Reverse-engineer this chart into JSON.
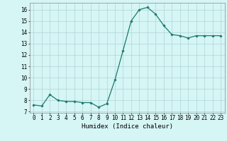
{
  "x": [
    0,
    1,
    2,
    3,
    4,
    5,
    6,
    7,
    8,
    9,
    10,
    11,
    12,
    13,
    14,
    15,
    16,
    17,
    18,
    19,
    20,
    21,
    22,
    23
  ],
  "y": [
    7.6,
    7.5,
    8.5,
    8.0,
    7.9,
    7.9,
    7.8,
    7.8,
    7.4,
    7.7,
    9.8,
    12.4,
    15.0,
    16.0,
    16.2,
    15.6,
    14.6,
    13.8,
    13.7,
    13.5,
    13.7,
    13.7,
    13.7,
    13.7
  ],
  "line_color": "#1a7a6a",
  "marker": "D",
  "marker_size": 1.8,
  "line_width": 0.9,
  "bg_color": "#d6f5f5",
  "grid_color": "#aed4d4",
  "xlabel": "Humidex (Indice chaleur)",
  "xlim": [
    -0.5,
    23.5
  ],
  "ylim": [
    6.9,
    16.6
  ],
  "yticks": [
    7,
    8,
    9,
    10,
    11,
    12,
    13,
    14,
    15,
    16
  ],
  "xticks": [
    0,
    1,
    2,
    3,
    4,
    5,
    6,
    7,
    8,
    9,
    10,
    11,
    12,
    13,
    14,
    15,
    16,
    17,
    18,
    19,
    20,
    21,
    22,
    23
  ],
  "tick_fontsize": 5.5,
  "xlabel_fontsize": 6.5
}
